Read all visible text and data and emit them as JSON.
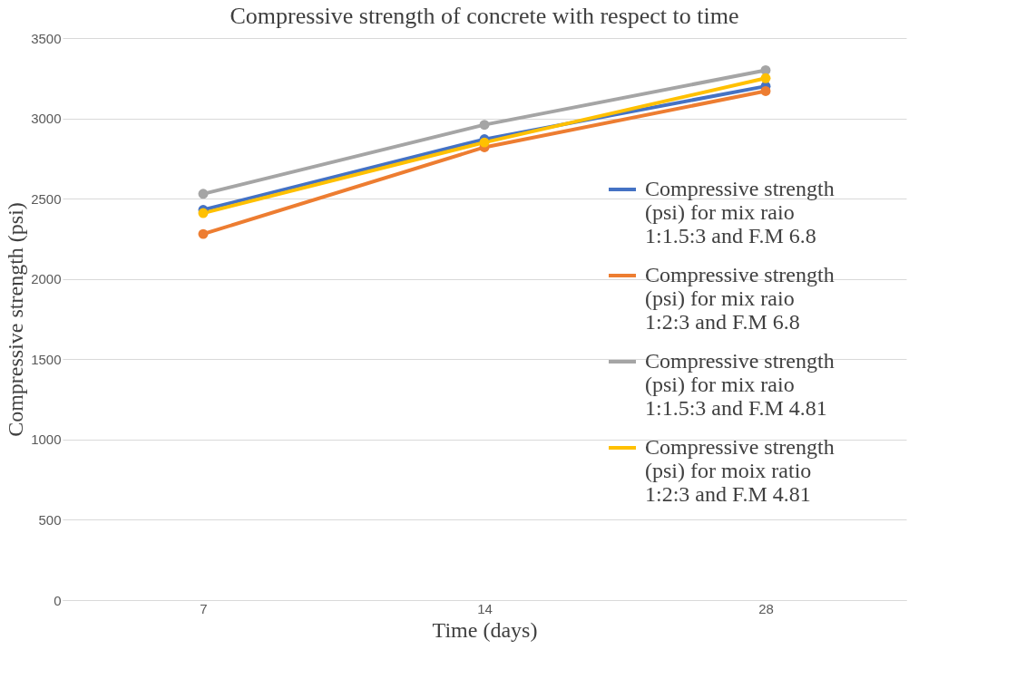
{
  "chart_data": {
    "type": "line",
    "title": "Compressive strength of concrete with respect to time",
    "xlabel": "Time (days)",
    "ylabel": "Compressive strength (psi)",
    "categories": [
      "7",
      "14",
      "28"
    ],
    "series": [
      {
        "name": "Compressive strength (psi) for mix raio 1:1.5:3 and F.M 6.8",
        "color": "#4472c4",
        "values": [
          2430,
          2870,
          3200
        ]
      },
      {
        "name": "Compressive strength (psi) for mix raio 1:2:3 and F.M 6.8",
        "color": "#ed7d31",
        "values": [
          2280,
          2820,
          3170
        ]
      },
      {
        "name": "Compressive strength (psi) for mix raio 1:1.5:3 and F.M 4.81",
        "color": "#a5a5a5",
        "values": [
          2530,
          2960,
          3300
        ]
      },
      {
        "name": "Compressive strength (psi) for moix ratio 1:2:3 and F.M 4.81",
        "color": "#ffc000",
        "values": [
          2410,
          2850,
          3250
        ]
      }
    ],
    "ylim": [
      0,
      3500
    ],
    "yticks": [
      0,
      500,
      1000,
      1500,
      2000,
      2500,
      3000,
      3500
    ],
    "grid": "y",
    "legend": "right",
    "marker": "circle"
  }
}
